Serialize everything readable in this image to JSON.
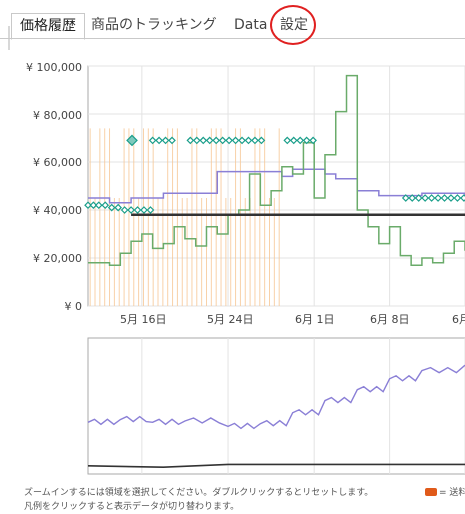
{
  "tabs": [
    {
      "label": "価格履歴",
      "active": true
    },
    {
      "label": "商品のトラッキング",
      "active": false
    },
    {
      "label": "Data",
      "active": false
    },
    {
      "label": "設定",
      "active": false
    }
  ],
  "colors": {
    "new_price": "#8a7fd6",
    "used_price": "#6aab6a",
    "sales_rank_line": "#333333",
    "deal_markers": "#1a9e8a",
    "out_of_stock_bars": "#f7c99a",
    "annotation": "#e02020"
  },
  "chart_data": {
    "type": "line",
    "ylim": [
      0,
      100000
    ],
    "y_ticks": [
      "¥ 100,000",
      "¥ 80,000",
      "¥ 60,000",
      "¥ 40,000",
      "¥ 20,000",
      "¥ 0"
    ],
    "y_tick_values": [
      100000,
      80000,
      60000,
      40000,
      20000,
      0
    ],
    "x_ticks": [
      "5月 16日",
      "5月 24日",
      "6月 1日",
      "6月 8日",
      "6月"
    ],
    "x_tick_days": [
      16,
      24,
      32,
      39,
      46
    ],
    "xlim_days": [
      11,
      46
    ],
    "series": [
      {
        "key": "new",
        "color": "#8a7fd6",
        "points": [
          [
            11,
            45000
          ],
          [
            13,
            43000
          ],
          [
            15,
            45000
          ],
          [
            18,
            47000
          ],
          [
            22,
            47000
          ],
          [
            23,
            56000
          ],
          [
            28,
            56000
          ],
          [
            29,
            54000
          ],
          [
            30,
            57000
          ],
          [
            32,
            57000
          ],
          [
            33,
            55000
          ],
          [
            34,
            53000
          ],
          [
            36,
            48000
          ],
          [
            38,
            46000
          ],
          [
            42,
            47000
          ],
          [
            46,
            46000
          ]
        ]
      },
      {
        "key": "used",
        "color": "#6aab6a",
        "points": [
          [
            11,
            18000
          ],
          [
            13,
            17000
          ],
          [
            14,
            22000
          ],
          [
            15,
            27000
          ],
          [
            16,
            30000
          ],
          [
            17,
            24000
          ],
          [
            18,
            26000
          ],
          [
            19,
            33000
          ],
          [
            20,
            28000
          ],
          [
            21,
            25000
          ],
          [
            22,
            33000
          ],
          [
            23,
            30000
          ],
          [
            24,
            38000
          ],
          [
            25,
            40000
          ],
          [
            26,
            55000
          ],
          [
            27,
            42000
          ],
          [
            28,
            48000
          ],
          [
            29,
            58000
          ],
          [
            30,
            55000
          ],
          [
            31,
            68000
          ],
          [
            32,
            45000
          ],
          [
            33,
            63000
          ],
          [
            34,
            81000
          ],
          [
            35,
            96000
          ],
          [
            36,
            40000
          ],
          [
            37,
            33000
          ],
          [
            38,
            26000
          ],
          [
            39,
            33000
          ],
          [
            40,
            21000
          ],
          [
            41,
            17000
          ],
          [
            42,
            20000
          ],
          [
            43,
            18000
          ],
          [
            44,
            22000
          ],
          [
            45,
            27000
          ],
          [
            46,
            23000
          ]
        ]
      },
      {
        "key": "rank",
        "color": "#333333",
        "points": [
          [
            15,
            38000
          ],
          [
            46,
            38000
          ]
        ]
      }
    ],
    "deal_points": [
      [
        11,
        42000
      ],
      [
        11.5,
        42000
      ],
      [
        12,
        42000
      ],
      [
        12.6,
        42000
      ],
      [
        13.2,
        41000
      ],
      [
        13.8,
        41000
      ],
      [
        14.4,
        40000
      ],
      [
        15.0,
        40000
      ],
      [
        15.6,
        40000
      ],
      [
        16.2,
        40000
      ],
      [
        16.8,
        40000
      ],
      [
        17,
        69000
      ],
      [
        17.6,
        69000
      ],
      [
        18.2,
        69000
      ],
      [
        18.8,
        69000
      ],
      [
        20.5,
        69000
      ],
      [
        21.1,
        69000
      ],
      [
        21.7,
        69000
      ],
      [
        22.3,
        69000
      ],
      [
        22.9,
        69000
      ],
      [
        23.5,
        69000
      ],
      [
        24.1,
        69000
      ],
      [
        24.7,
        69000
      ],
      [
        25.3,
        69000
      ],
      [
        25.9,
        69000
      ],
      [
        26.5,
        69000
      ],
      [
        27.1,
        69000
      ],
      [
        29.5,
        69000
      ],
      [
        30.1,
        69000
      ],
      [
        30.7,
        69000
      ],
      [
        31.3,
        69000
      ],
      [
        31.9,
        69000
      ],
      [
        40.5,
        45000
      ],
      [
        41.1,
        45000
      ],
      [
        41.7,
        45000
      ],
      [
        42.3,
        45000
      ],
      [
        42.9,
        45000
      ],
      [
        43.5,
        45000
      ],
      [
        44.1,
        45000
      ],
      [
        44.7,
        45000
      ],
      [
        45.3,
        45000
      ],
      [
        45.9,
        45000
      ]
    ],
    "highlight_point": [
      16.2,
      69000
    ],
    "overview": {
      "new": [
        [
          11,
          0.62
        ],
        [
          14,
          0.6
        ],
        [
          17,
          0.62
        ],
        [
          20,
          0.61
        ],
        [
          24,
          0.65
        ],
        [
          27,
          0.63
        ],
        [
          30,
          0.55
        ],
        [
          33,
          0.46
        ],
        [
          36,
          0.38
        ],
        [
          39,
          0.3
        ],
        [
          42,
          0.24
        ],
        [
          46,
          0.2
        ]
      ],
      "rank": [
        [
          11,
          0.94
        ],
        [
          46,
          0.94
        ]
      ]
    }
  },
  "footer": {
    "hint_line1": "ズームインするには領域を選択してください。ダブルクリックするとリセットします。",
    "hint_line2": "凡例をクリックすると表示データが切り替わります。",
    "legend_truncated": "= 送料"
  }
}
